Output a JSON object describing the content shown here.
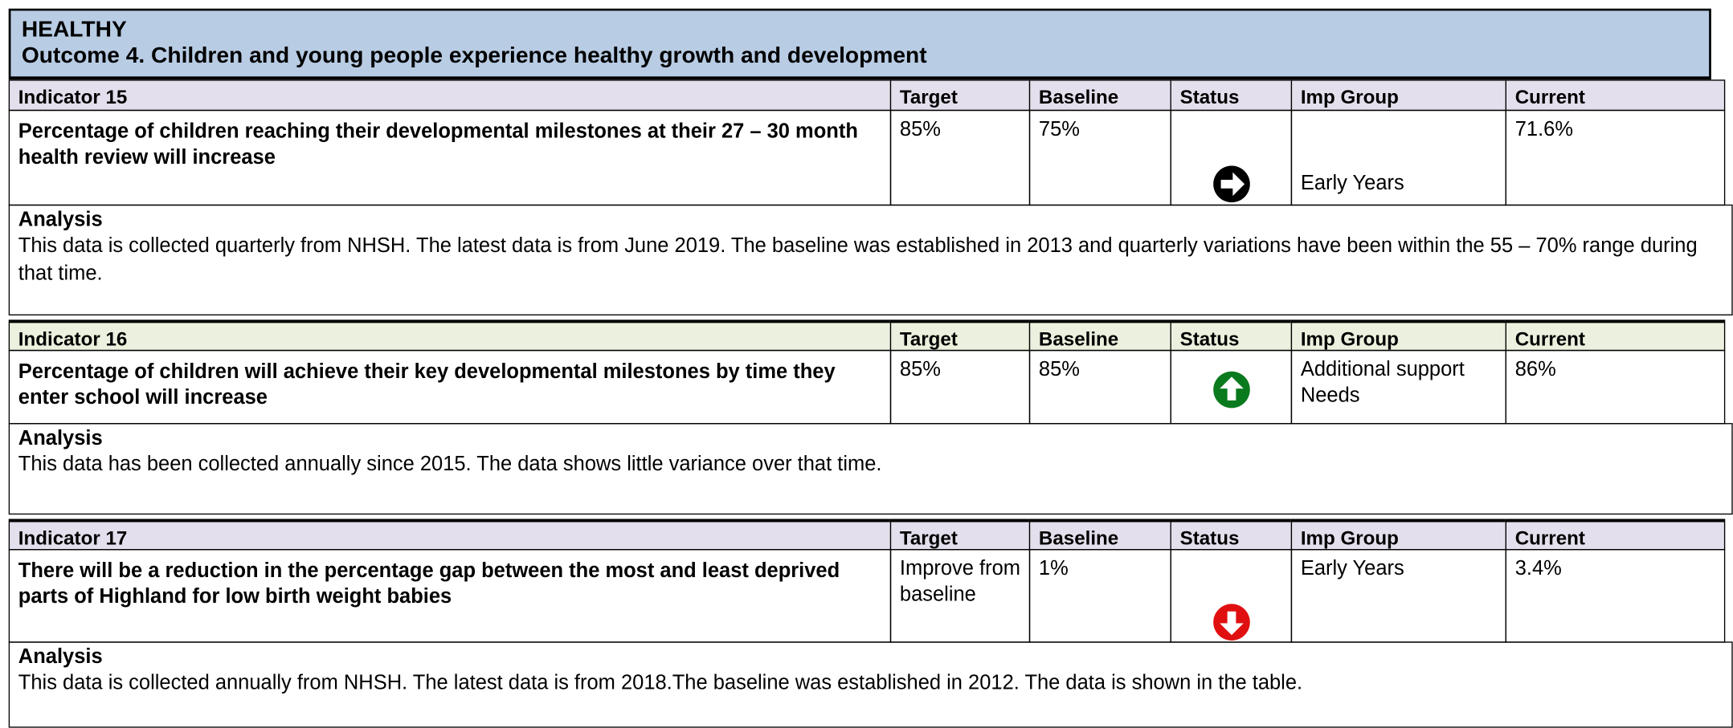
{
  "header": {
    "title": "HEALTHY",
    "subtitle": "Outcome 4. Children and young people experience healthy growth and development"
  },
  "indicators": [
    {
      "columns": {
        "indicator": "Indicator 15",
        "target": "Target",
        "baseline": "Baseline",
        "status": "Status",
        "imp_group": "Imp Group",
        "current": "Current"
      },
      "description": "Percentage of children reaching their developmental milestones at their 27 – 30 month health review will increase",
      "target": "85%",
      "baseline": "75%",
      "imp_group": "Early Years",
      "current": "71.6%",
      "analysis_title": "Analysis",
      "analysis": "This data is collected quarterly from NHSH. The latest data is from June 2019. The baseline was established in 2013 and quarterly variations have been within the 55 – 70% range during that time."
    },
    {
      "columns": {
        "indicator": "Indicator 16",
        "target": "Target",
        "baseline": "Baseline",
        "status": "Status",
        "imp_group": "Imp Group",
        "current": "Current"
      },
      "description": "Percentage of children will achieve their key developmental milestones by time they enter school will increase",
      "target": "85%",
      "baseline": "85%",
      "imp_group": "Additional support Needs",
      "current": "86%",
      "analysis_title": "Analysis",
      "analysis": "This data has been collected annually since 2015. The data shows little variance over that time."
    },
    {
      "columns": {
        "indicator": "Indicator 17",
        "target": "Target",
        "baseline": "Baseline",
        "status": "Status",
        "imp_group": "Imp Group",
        "current": "Current"
      },
      "description": "There will be a reduction in the percentage gap between the most and least deprived parts of Highland for low birth weight babies",
      "target": "Improve from baseline",
      "baseline": "1%",
      "imp_group": "Early Years",
      "current": "3.4%",
      "analysis_title": "Analysis",
      "analysis": "This data is collected annually from NHSH. The latest data is from 2018.The baseline was established in 2012. The data is shown in the table."
    }
  ]
}
